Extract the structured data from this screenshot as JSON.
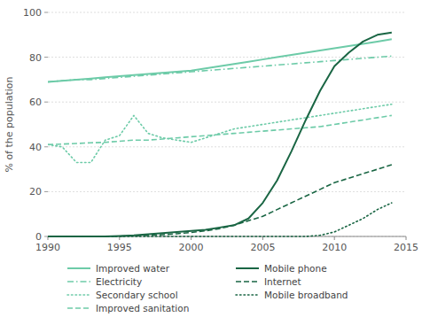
{
  "chart_data": {
    "type": "line",
    "ylabel": "% of the population",
    "x": [
      1990,
      1991,
      1992,
      1993,
      1994,
      1995,
      1996,
      1997,
      1998,
      1999,
      2000,
      2001,
      2002,
      2003,
      2004,
      2005,
      2006,
      2007,
      2008,
      2009,
      2010,
      2011,
      2012,
      2013,
      2014
    ],
    "series": [
      {
        "name": "Improved water",
        "color": "#6dcba8",
        "line_style": "solid",
        "values": [
          69,
          69.5,
          70,
          70.5,
          71,
          71.5,
          72,
          72.5,
          73,
          73.5,
          74,
          75,
          76,
          77,
          78,
          79,
          80,
          81,
          82,
          83,
          84,
          85,
          86,
          87,
          88
        ]
      },
      {
        "name": "Electricity",
        "color": "#6dcba8",
        "line_style": "dashdot",
        "values": [
          69,
          69.5,
          70,
          70,
          70.5,
          71,
          71.5,
          72,
          72.5,
          73,
          73.5,
          74,
          74.5,
          75,
          75.5,
          76,
          76.5,
          77,
          77.5,
          78,
          78.5,
          79,
          79.5,
          80,
          80.5
        ]
      },
      {
        "name": "Secondary school",
        "color": "#6dcba8",
        "line_style": "dotted",
        "values": [
          41,
          40,
          33,
          33,
          43,
          45,
          54,
          46,
          44,
          43,
          42,
          44,
          46,
          48,
          49,
          50,
          51,
          52,
          53,
          54,
          55,
          56,
          57,
          58,
          59
        ]
      },
      {
        "name": "Improved sanitation",
        "color": "#6dcba8",
        "line_style": "dashed",
        "values": [
          41,
          41.2,
          41.5,
          41.8,
          42,
          42.5,
          43,
          43,
          43.5,
          44,
          44.5,
          45,
          45.5,
          46,
          46.5,
          47,
          47.5,
          48,
          48.5,
          49,
          50,
          51,
          52,
          53,
          54
        ]
      },
      {
        "name": "Mobile phone",
        "color": "#1a6644",
        "line_style": "solid",
        "values": [
          0,
          0,
          0,
          0,
          0,
          0.2,
          0.5,
          1,
          1.5,
          2,
          2.5,
          3,
          4,
          5,
          8,
          15,
          25,
          38,
          52,
          65,
          76,
          82,
          87,
          90,
          91
        ]
      },
      {
        "name": "Internet",
        "color": "#1a6644",
        "line_style": "dashed",
        "values": [
          0,
          0,
          0,
          0,
          0,
          0.1,
          0.3,
          0.5,
          0.8,
          1.2,
          1.8,
          2.5,
          3.5,
          5,
          7,
          9,
          12,
          15,
          18,
          21,
          24,
          26,
          28,
          30,
          32
        ]
      },
      {
        "name": "Mobile broadband",
        "color": "#1a6644",
        "line_style": "dotted",
        "values": [
          0,
          0,
          0,
          0,
          0,
          0,
          0,
          0,
          0,
          0,
          0,
          0,
          0,
          0,
          0,
          0,
          0,
          0,
          0,
          0.5,
          2,
          5,
          8,
          12,
          15
        ]
      }
    ],
    "xlim": [
      1990,
      2015
    ],
    "ylim": [
      0,
      100
    ],
    "xticks": [
      1990,
      1995,
      2000,
      2005,
      2010,
      2015
    ],
    "yticks": [
      0,
      20,
      40,
      60,
      80,
      100
    ],
    "grid": true,
    "legend": "bottom"
  }
}
